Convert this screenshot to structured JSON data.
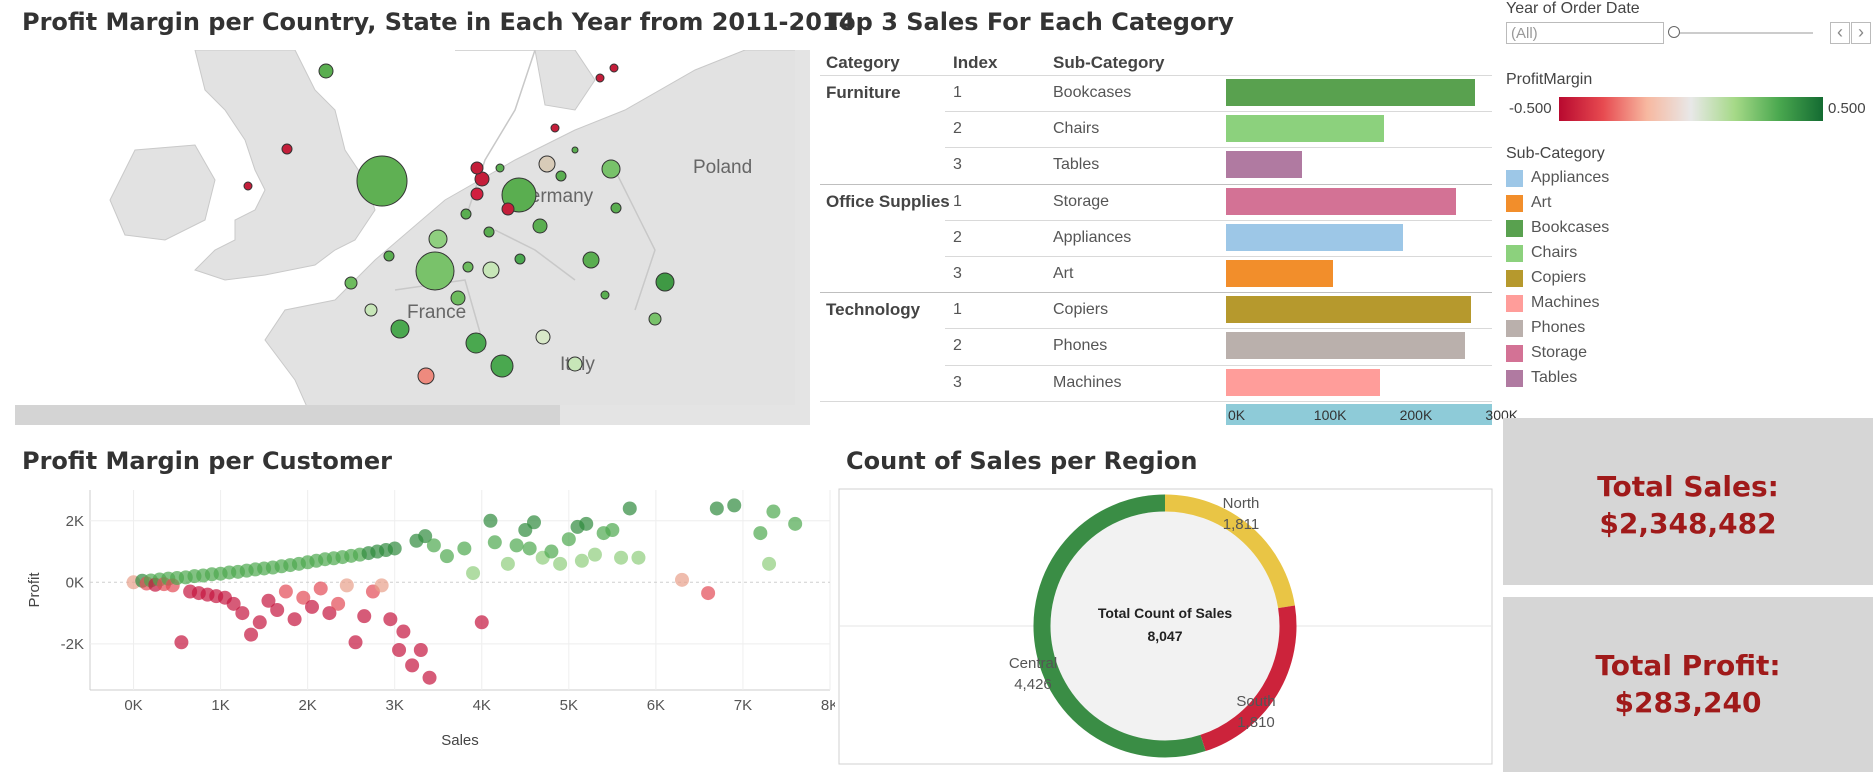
{
  "titles": {
    "map": "Profit Margin per Country, State in Each Year from 2011-2014",
    "top3": "Top 3 Sales For Each Category",
    "customer": "Profit Margin per Customer",
    "region": "Count of Sales per Region"
  },
  "map_labels": {
    "poland": "Poland",
    "germany": "Germany",
    "france": "France",
    "italy": "Italy"
  },
  "filter": {
    "label": "Year of Order Date",
    "value": "(All)",
    "prev": "‹",
    "next": "›"
  },
  "profit_margin_legend": {
    "label": "ProfitMargin",
    "min": "-0.500",
    "max": "0.500"
  },
  "subcategory_legend": {
    "label": "Sub-Category",
    "items": [
      {
        "name": "Appliances",
        "color": "#9dc7e7"
      },
      {
        "name": "Art",
        "color": "#f28e2b"
      },
      {
        "name": "Bookcases",
        "color": "#59a14f"
      },
      {
        "name": "Chairs",
        "color": "#8cd17d"
      },
      {
        "name": "Copiers",
        "color": "#b6992d"
      },
      {
        "name": "Machines",
        "color": "#ff9d9a"
      },
      {
        "name": "Phones",
        "color": "#bab0ac"
      },
      {
        "name": "Storage",
        "color": "#d37295"
      },
      {
        "name": "Tables",
        "color": "#b07aa1"
      }
    ]
  },
  "top3_table": {
    "headers": {
      "category": "Category",
      "index": "Index",
      "subcategory": "Sub-Category"
    },
    "rows": [
      {
        "category": "Furniture",
        "index": "1",
        "sub": "Bookcases",
        "value": 290000,
        "color": "#59a14f"
      },
      {
        "category": "",
        "index": "2",
        "sub": "Chairs",
        "value": 184000,
        "color": "#8cd17d"
      },
      {
        "category": "",
        "index": "3",
        "sub": "Tables",
        "value": 88000,
        "color": "#b07aa1"
      },
      {
        "category": "Office Supplies",
        "index": "1",
        "sub": "Storage",
        "value": 268000,
        "color": "#d37295"
      },
      {
        "category": "",
        "index": "2",
        "sub": "Appliances",
        "value": 206000,
        "color": "#9dc7e7"
      },
      {
        "category": "",
        "index": "3",
        "sub": "Art",
        "value": 125000,
        "color": "#f28e2b"
      },
      {
        "category": "Technology",
        "index": "1",
        "sub": "Copiers",
        "value": 285000,
        "color": "#b6992d"
      },
      {
        "category": "",
        "index": "2",
        "sub": "Phones",
        "value": 278000,
        "color": "#bab0ac"
      },
      {
        "category": "",
        "index": "3",
        "sub": "Machines",
        "value": 180000,
        "color": "#ff9d9a"
      }
    ],
    "axis_ticks": [
      "0K",
      "100K",
      "200K",
      "300K"
    ]
  },
  "kpis": {
    "sales_label": "Total Sales:",
    "sales_value": "$2,348,482",
    "profit_label": "Total Profit:",
    "profit_value": "$283,240"
  },
  "chart_data": [
    {
      "type": "scatter",
      "title": "Profit Margin per Customer",
      "xlabel": "Sales",
      "ylabel": "Profit",
      "x_ticks": [
        "0K",
        "1K",
        "2K",
        "3K",
        "4K",
        "5K",
        "6K",
        "7K",
        "8K"
      ],
      "y_ticks": [
        "2K",
        "0K",
        "-2K"
      ],
      "xlim": [
        -500,
        8000
      ],
      "ylim": [
        -3500,
        3000
      ],
      "grid": true,
      "points": [
        [
          0,
          0
        ],
        [
          100,
          50
        ],
        [
          150,
          -40
        ],
        [
          200,
          60
        ],
        [
          250,
          -80
        ],
        [
          300,
          90
        ],
        [
          350,
          -60
        ],
        [
          400,
          120
        ],
        [
          450,
          -100
        ],
        [
          500,
          140
        ],
        [
          550,
          -1950
        ],
        [
          600,
          160
        ],
        [
          650,
          -300
        ],
        [
          700,
          200
        ],
        [
          750,
          -350
        ],
        [
          800,
          220
        ],
        [
          850,
          -400
        ],
        [
          900,
          260
        ],
        [
          950,
          -450
        ],
        [
          1000,
          280
        ],
        [
          1050,
          -500
        ],
        [
          1100,
          320
        ],
        [
          1150,
          -700
        ],
        [
          1200,
          340
        ],
        [
          1250,
          -1000
        ],
        [
          1300,
          380
        ],
        [
          1350,
          -1700
        ],
        [
          1400,
          420
        ],
        [
          1450,
          -1300
        ],
        [
          1500,
          450
        ],
        [
          1550,
          -600
        ],
        [
          1600,
          480
        ],
        [
          1650,
          -900
        ],
        [
          1700,
          520
        ],
        [
          1750,
          -300
        ],
        [
          1800,
          560
        ],
        [
          1850,
          -1200
        ],
        [
          1900,
          600
        ],
        [
          1950,
          -500
        ],
        [
          2000,
          650
        ],
        [
          2050,
          -800
        ],
        [
          2100,
          700
        ],
        [
          2150,
          -200
        ],
        [
          2200,
          750
        ],
        [
          2250,
          -1000
        ],
        [
          2300,
          780
        ],
        [
          2350,
          -700
        ],
        [
          2400,
          820
        ],
        [
          2450,
          -100
        ],
        [
          2500,
          860
        ],
        [
          2550,
          -1950
        ],
        [
          2600,
          900
        ],
        [
          2650,
          -1100
        ],
        [
          2700,
          950
        ],
        [
          2750,
          -300
        ],
        [
          2800,
          1000
        ],
        [
          2850,
          -100
        ],
        [
          2900,
          1050
        ],
        [
          2950,
          -1200
        ],
        [
          3000,
          1100
        ],
        [
          3050,
          -2200
        ],
        [
          3100,
          -1600
        ],
        [
          3200,
          -2700
        ],
        [
          3300,
          -2200
        ],
        [
          3400,
          -3100
        ],
        [
          3250,
          1350
        ],
        [
          3350,
          1500
        ],
        [
          3450,
          1200
        ],
        [
          3600,
          850
        ],
        [
          3800,
          1100
        ],
        [
          3900,
          300
        ],
        [
          4000,
          -1300
        ],
        [
          4100,
          2000
        ],
        [
          4150,
          1300
        ],
        [
          4300,
          600
        ],
        [
          4400,
          1200
        ],
        [
          4500,
          1700
        ],
        [
          4600,
          1950
        ],
        [
          4700,
          800
        ],
        [
          4800,
          1000
        ],
        [
          4900,
          600
        ],
        [
          5000,
          1400
        ],
        [
          5100,
          1800
        ],
        [
          5200,
          1900
        ],
        [
          5300,
          900
        ],
        [
          5400,
          1600
        ],
        [
          5500,
          1700
        ],
        [
          5600,
          800
        ],
        [
          5700,
          2400
        ],
        [
          5800,
          800
        ],
        [
          6300,
          80
        ],
        [
          6600,
          -350
        ],
        [
          6700,
          2400
        ],
        [
          6900,
          2500
        ],
        [
          7200,
          1600
        ],
        [
          7300,
          600
        ],
        [
          7350,
          2300
        ],
        [
          7600,
          1900
        ],
        [
          4550,
          1100
        ],
        [
          5150,
          700
        ]
      ]
    },
    {
      "type": "pie",
      "title": "Count of Sales per Region",
      "center_label": "Total Count of Sales",
      "center_value": "8,047",
      "slices": [
        {
          "name": "North",
          "value": 1811,
          "label": "1,811",
          "color": "#e9c545"
        },
        {
          "name": "South",
          "value": 1810,
          "label": "1,810",
          "color": "#cc233b"
        },
        {
          "name": "Central",
          "value": 4426,
          "label": "4,426",
          "color": "#3a8d45"
        }
      ]
    }
  ]
}
